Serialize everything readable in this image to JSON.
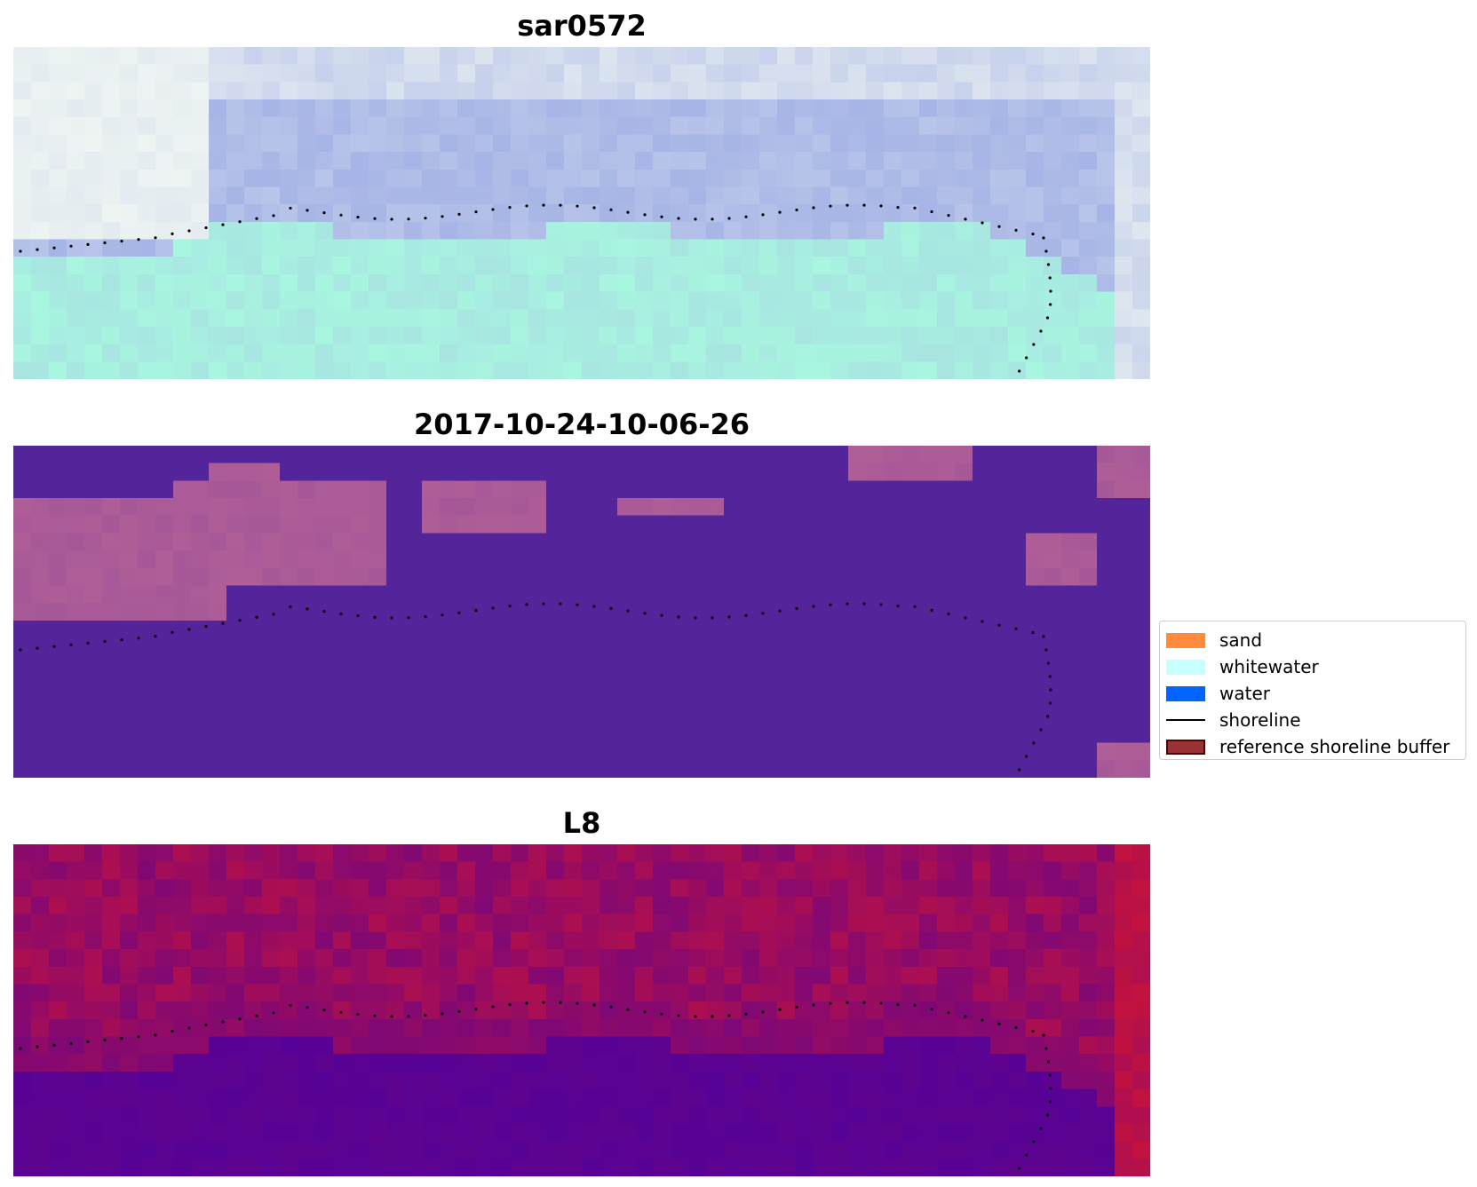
{
  "panels": [
    {
      "id": "rgb",
      "title": "sar0572"
    },
    {
      "id": "classified",
      "title": "2017-10-24-10-06-26"
    },
    {
      "id": "index",
      "title": "L8"
    }
  ],
  "legend": {
    "items": [
      {
        "label": "sand",
        "color": "#ff8c3c",
        "kind": "patch"
      },
      {
        "label": "whitewater",
        "color": "#c8ffff",
        "kind": "patch"
      },
      {
        "label": "water",
        "color": "#0064ff",
        "kind": "patch"
      },
      {
        "label": "shoreline",
        "color": "#000000",
        "kind": "line"
      },
      {
        "label": "reference shoreline buffer",
        "color": "#993333",
        "kind": "patch",
        "edge": "#5a0000"
      }
    ]
  },
  "colors": {
    "rgb_land": "#a8f5e0",
    "rgb_sea": "#a6b4e6",
    "rgb_haze": "#eef4f2",
    "classified_background": "#53249a",
    "classified_patch": "#b05e97",
    "index_low": "#560296",
    "index_high": "#c2123f",
    "shoreline_points": "#000000"
  }
}
